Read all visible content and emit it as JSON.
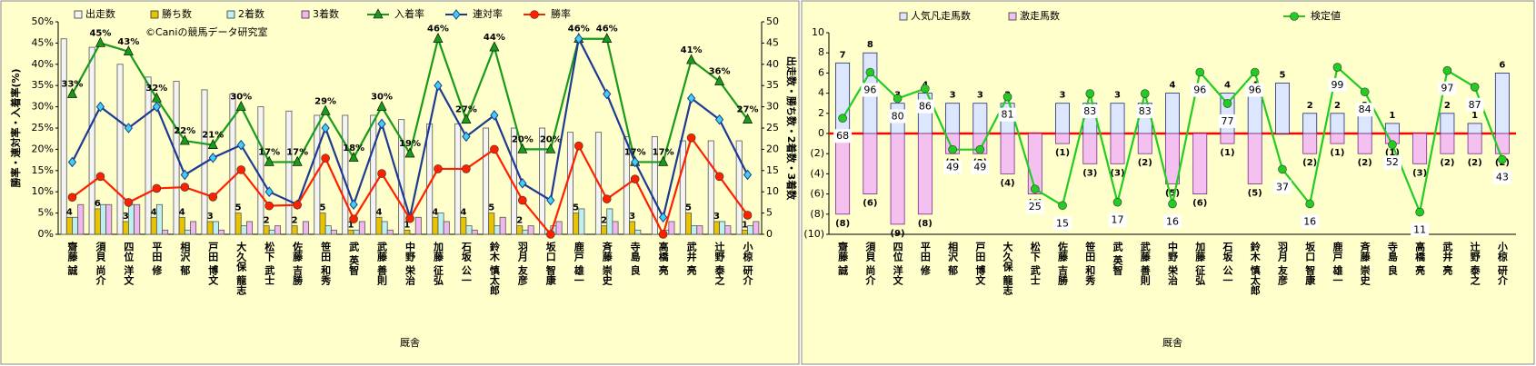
{
  "chart_data": [
    {
      "type": "combo",
      "annotation": "©Caniの競馬データ研究室",
      "y_label": "勝率・連対率・入着率(%)",
      "y2_label": "出走数・勝ち数・2着数・3着数",
      "x_label": "厩舎",
      "categories": [
        "齋藤 誠",
        "須貝 尚介",
        "四位 洋文",
        "平田 修",
        "相沢 郁",
        "戸田 博文",
        "大久保 龍志",
        "松下 武士",
        "佐藤 吉勝",
        "笹田 和秀",
        "武 英智",
        "武藤 善則",
        "中野 栄治",
        "加藤 征弘",
        "石坂 公一",
        "鈴木 慎太郎",
        "羽月 友彦",
        "坂口 智康",
        "鹿戸 雄一",
        "斉藤 崇史",
        "寺島 良",
        "高橋 亮",
        "武井 亮",
        "辻野 泰之",
        "小椋 研介"
      ],
      "ylim": [
        0,
        50
      ],
      "yticks": [
        {
          "value": 0,
          "label": "0%"
        },
        {
          "value": 5,
          "label": "5%"
        },
        {
          "value": 10,
          "label": "10%"
        },
        {
          "value": 15,
          "label": "15%"
        },
        {
          "value": 20,
          "label": "20%"
        },
        {
          "value": 25,
          "label": "25%"
        },
        {
          "value": 30,
          "label": "30%"
        },
        {
          "value": 35,
          "label": "35%"
        },
        {
          "value": 40,
          "label": "40%"
        },
        {
          "value": 45,
          "label": "45%"
        },
        {
          "value": 50,
          "label": "50%"
        }
      ],
      "y2lim": [
        0,
        50
      ],
      "y2ticks": [
        0,
        5,
        10,
        15,
        20,
        25,
        30,
        35,
        40,
        45,
        50
      ],
      "bar_layout": "grouped",
      "series": [
        {
          "name": "出走数",
          "kind": "bar",
          "axis": "y2",
          "color": "#f4f4f4",
          "values": [
            46,
            44,
            40,
            37,
            36,
            34,
            33,
            30,
            29,
            28,
            28,
            28,
            27,
            26,
            26,
            25,
            25,
            25,
            24,
            24,
            23,
            23,
            22,
            22,
            22
          ]
        },
        {
          "name": "勝ち数",
          "kind": "bar",
          "axis": "y2",
          "color": "#e8c400",
          "data_labels": true,
          "values": [
            4,
            6,
            3,
            4,
            4,
            3,
            5,
            2,
            2,
            5,
            1,
            4,
            1,
            4,
            4,
            5,
            2,
            0,
            5,
            2,
            3,
            0,
            5,
            3,
            1
          ]
        },
        {
          "name": "2着数",
          "kind": "bar",
          "axis": "y2",
          "color": "#bff0f0",
          "values": [
            4,
            7,
            7,
            7,
            1,
            3,
            2,
            1,
            0,
            2,
            1,
            3,
            0,
            5,
            2,
            2,
            1,
            2,
            6,
            6,
            1,
            1,
            2,
            3,
            2
          ]
        },
        {
          "name": "3着数",
          "kind": "bar",
          "axis": "y2",
          "color": "#f0b8ee",
          "values": [
            7,
            7,
            7,
            1,
            3,
            1,
            3,
            2,
            3,
            1,
            3,
            1,
            4,
            3,
            1,
            4,
            2,
            3,
            0,
            3,
            0,
            3,
            2,
            2,
            3
          ]
        },
        {
          "name": "入着率",
          "kind": "line",
          "marker": "triangle",
          "color": "#1a9a1a",
          "values": [
            33,
            45,
            43,
            32,
            22,
            21,
            30,
            17,
            17,
            29,
            18,
            30,
            19,
            46,
            27,
            44,
            20,
            20,
            46,
            46,
            17,
            17,
            41,
            36,
            27
          ],
          "value_labels": [
            "33%",
            "45%",
            "43%",
            "32%",
            "22%",
            "21%",
            "30%",
            "17%",
            "17%",
            "29%",
            "18%",
            "30%",
            "19%",
            "46%",
            "27%",
            "44%",
            "20%",
            "20%",
            "46%",
            "46%",
            "17%",
            "17%",
            "41%",
            "36%",
            "27%"
          ]
        },
        {
          "name": "連対率",
          "kind": "line",
          "marker": "diamond",
          "color": "#1f3a93",
          "values": [
            17,
            30,
            25,
            30,
            14,
            18,
            21,
            10,
            7,
            25,
            7,
            26,
            4,
            35,
            23,
            28,
            12,
            8,
            46,
            33,
            17,
            4,
            32,
            27,
            14
          ]
        },
        {
          "name": "勝率",
          "kind": "line",
          "marker": "circle",
          "color": "#ff2000",
          "values": [
            8.7,
            13.6,
            7.5,
            10.8,
            11.1,
            8.8,
            15.2,
            6.7,
            6.9,
            17.9,
            3.6,
            14.3,
            3.7,
            15.4,
            15.4,
            20,
            8,
            0,
            20.8,
            8.3,
            13,
            0,
            22.7,
            13.6,
            4.5
          ]
        }
      ]
    },
    {
      "type": "combo",
      "x_label": "厩舎",
      "categories": [
        "齋藤 誠",
        "須貝 尚介",
        "四位 洋文",
        "平田 修",
        "相沢 郁",
        "戸田 博文",
        "大久保 龍志",
        "松下 武士",
        "佐藤 吉勝",
        "笹田 和秀",
        "武 英智",
        "武藤 善則",
        "中野 栄治",
        "加藤 征弘",
        "石坂 公一",
        "鈴木 慎太郎",
        "羽月 友彦",
        "坂口 智康",
        "鹿戸 雄一",
        "斉藤 崇史",
        "寺島 良",
        "高橋 亮",
        "武井 亮",
        "辻野 泰之",
        "小椋 研介"
      ],
      "ylim": [
        -10,
        10
      ],
      "yticks": [
        {
          "value": -10,
          "label": "(10)"
        },
        {
          "value": -8,
          "label": "(8)"
        },
        {
          "value": -6,
          "label": "(6)"
        },
        {
          "value": -4,
          "label": "(4)"
        },
        {
          "value": -2,
          "label": "(2)"
        },
        0,
        2,
        4,
        6,
        8,
        10
      ],
      "y2lim": [
        -2.5,
        120
      ],
      "bar_layout": "overlap",
      "series": [
        {
          "name": "人気凡走馬数",
          "kind": "bar",
          "color": "#dce6ff",
          "data_labels": true,
          "values": [
            7,
            8,
            3,
            4,
            3,
            3,
            3,
            0,
            3,
            3,
            3,
            3,
            4,
            0,
            4,
            4,
            5,
            2,
            2,
            2,
            1,
            0,
            2,
            1,
            6
          ]
        },
        {
          "name": "激走馬数",
          "kind": "bar",
          "color": "#f4c0f0",
          "values": [
            -8,
            -6,
            -9,
            -8,
            -2,
            -2,
            -4,
            -6,
            -1,
            -3,
            -3,
            -2,
            -5,
            -6,
            -1,
            -5,
            0,
            -2,
            -1,
            -2,
            -1,
            -3,
            -2,
            -2,
            -2
          ],
          "value_labels": [
            "(8)",
            "(6)",
            "(9)",
            "(8)",
            "(2)",
            "(2)",
            "(4)",
            "(6)",
            "(1)",
            "(3)",
            "(3)",
            "(2)",
            "(5)",
            "(6)",
            "(1)",
            "(5)",
            null,
            "(2)",
            "(1)",
            "(2)",
            "(1)",
            "(3)",
            "(2)",
            "(2)",
            "(2)"
          ]
        },
        {
          "name": "検定値",
          "kind": "line",
          "axis": "y2",
          "marker": "circle",
          "color": "#22cc22",
          "data_labels": true,
          "values": [
            68,
            96,
            80,
            86,
            49,
            49,
            81,
            25,
            15,
            83,
            17,
            83,
            16,
            96,
            77,
            96,
            37,
            16,
            99,
            84,
            52,
            11,
            97,
            87,
            43
          ]
        }
      ]
    }
  ]
}
